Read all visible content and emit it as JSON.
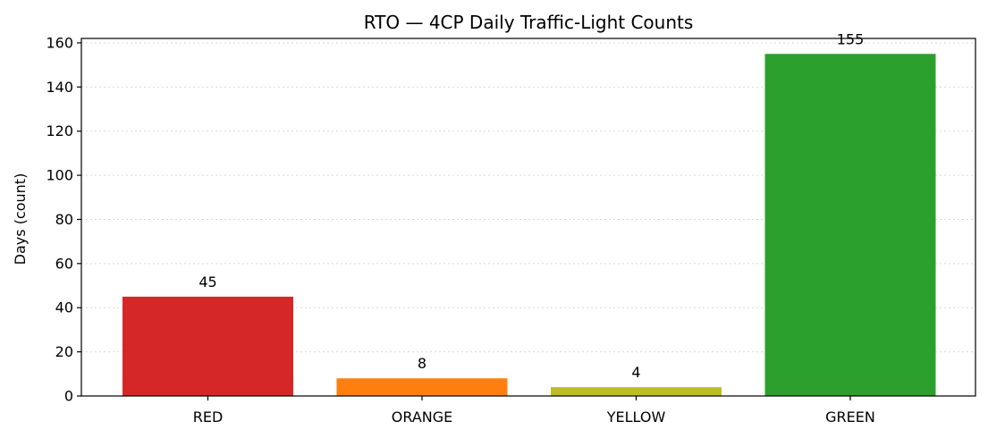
{
  "chart_data": {
    "type": "bar",
    "title": "RTO — 4CP Daily Traffic-Light Counts",
    "xlabel": "",
    "ylabel": "Days (count)",
    "categories": [
      "RED",
      "ORANGE",
      "YELLOW",
      "GREEN"
    ],
    "values": [
      45,
      8,
      4,
      155
    ],
    "data_labels": [
      "45",
      "8",
      "4",
      "155"
    ],
    "colors": [
      "#d62728",
      "#ff7f0e",
      "#bcbd22",
      "#2ca02c"
    ],
    "ylim": [
      0,
      162
    ],
    "yticks": [
      0,
      20,
      40,
      60,
      80,
      100,
      120,
      140,
      160
    ],
    "ytick_labels": [
      "0",
      "20",
      "40",
      "60",
      "80",
      "100",
      "120",
      "140",
      "160"
    ],
    "grid": "y-dotted",
    "legend": "none"
  }
}
